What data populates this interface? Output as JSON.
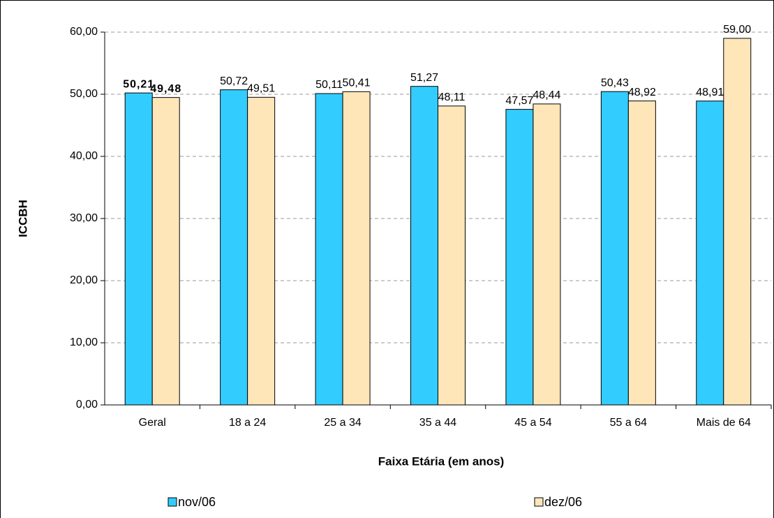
{
  "chart_data": {
    "type": "bar",
    "x_label": "Faixa Etária (em anos)",
    "y_label": "ICCBH",
    "categories": [
      "Geral",
      "18 a 24",
      "25 a 34",
      "35 a 44",
      "45 a 54",
      "55 a 64",
      "Mais de 64"
    ],
    "series": [
      {
        "name": "nov/06",
        "color": "#33ccff",
        "values": [
          50.21,
          50.72,
          50.11,
          51.27,
          47.57,
          50.43,
          48.91
        ],
        "value_labels": [
          "50,21",
          "50,72",
          "50,11",
          "51,27",
          "47,57",
          "50,43",
          "48,91"
        ]
      },
      {
        "name": "dez/06",
        "color": "#ffe6b8",
        "values": [
          49.48,
          49.51,
          50.41,
          48.11,
          48.44,
          48.92,
          59.0
        ],
        "value_labels": [
          "49,48",
          "49,51",
          "50,41",
          "48,11",
          "48,44",
          "48,92",
          "59,00"
        ]
      }
    ],
    "ylim": [
      0,
      60
    ],
    "yticks": [
      {
        "value": 0,
        "label": "0,00"
      },
      {
        "value": 10,
        "label": "10,00"
      },
      {
        "value": 20,
        "label": "20,00"
      },
      {
        "value": 30,
        "label": "30,00"
      },
      {
        "value": 40,
        "label": "40,00"
      },
      {
        "value": 50,
        "label": "50,00"
      },
      {
        "value": 60,
        "label": "60,00"
      }
    ],
    "grid": true,
    "legend": "bottom"
  }
}
